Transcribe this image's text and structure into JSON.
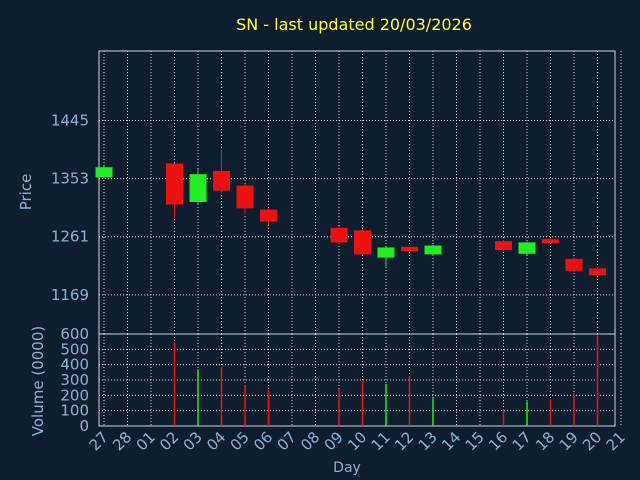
{
  "colors": {
    "background": "#0f1e2e",
    "title": "#ffff33",
    "axis_text": "#8fb0d0",
    "grid": "#d0d8e0",
    "up": "#22ee22",
    "down": "#ee1111"
  },
  "chart_data": [
    {
      "type": "candlestick",
      "title": "SN - last updated 20/03/2026",
      "ylabel": "Price",
      "xlabel": "Day",
      "ylim": [
        1107,
        1555
      ],
      "yticks": [
        1169,
        1261,
        1353,
        1445
      ],
      "grid": true,
      "x_ticks": [
        "27",
        "28",
        "01",
        "02",
        "03",
        "04",
        "05",
        "06",
        "07",
        "08",
        "09",
        "10",
        "11",
        "12",
        "13",
        "14",
        "15",
        "16",
        "17",
        "18",
        "19",
        "20",
        "21"
      ],
      "candles": [
        {
          "x": "27",
          "open": 1355,
          "close": 1371,
          "high": 1375,
          "low": 1353
        },
        {
          "x": "02",
          "open": 1377,
          "close": 1312,
          "high": 1378,
          "low": 1290
        },
        {
          "x": "03",
          "open": 1316,
          "close": 1360,
          "high": 1368,
          "low": 1312
        },
        {
          "x": "04",
          "open": 1365,
          "close": 1334,
          "high": 1398,
          "low": 1330
        },
        {
          "x": "05",
          "open": 1342,
          "close": 1306,
          "high": 1344,
          "low": 1297
        },
        {
          "x": "06",
          "open": 1304,
          "close": 1285,
          "high": 1306,
          "low": 1279
        },
        {
          "x": "09",
          "open": 1275,
          "close": 1252,
          "high": 1278,
          "low": 1248
        },
        {
          "x": "10",
          "open": 1271,
          "close": 1233,
          "high": 1273,
          "low": 1232
        },
        {
          "x": "11",
          "open": 1228,
          "close": 1244,
          "high": 1245,
          "low": 1211
        },
        {
          "x": "12",
          "open": 1245,
          "close": 1238,
          "high": 1247,
          "low": 1237
        },
        {
          "x": "13",
          "open": 1233,
          "close": 1247,
          "high": 1248,
          "low": 1231
        },
        {
          "x": "16",
          "open": 1254,
          "close": 1240,
          "high": 1256,
          "low": 1238
        },
        {
          "x": "17",
          "open": 1234,
          "close": 1252,
          "high": 1253,
          "low": 1232
        },
        {
          "x": "18",
          "open": 1257,
          "close": 1251,
          "high": 1259,
          "low": 1249
        },
        {
          "x": "19",
          "open": 1226,
          "close": 1207,
          "high": 1228,
          "low": 1205
        },
        {
          "x": "20",
          "open": 1211,
          "close": 1200,
          "high": 1213,
          "low": 1199
        }
      ]
    },
    {
      "type": "bar",
      "ylabel": "Volume (0000)",
      "ylim": [
        0,
        600
      ],
      "yticks": [
        0,
        100,
        200,
        300,
        400,
        500,
        600
      ],
      "grid": true,
      "bars": [
        {
          "x": "02",
          "value": 540,
          "dir": "down"
        },
        {
          "x": "03",
          "value": 370,
          "dir": "up"
        },
        {
          "x": "04",
          "value": 385,
          "dir": "down"
        },
        {
          "x": "05",
          "value": 265,
          "dir": "down"
        },
        {
          "x": "06",
          "value": 235,
          "dir": "down"
        },
        {
          "x": "09",
          "value": 240,
          "dir": "down"
        },
        {
          "x": "10",
          "value": 300,
          "dir": "down"
        },
        {
          "x": "11",
          "value": 275,
          "dir": "up"
        },
        {
          "x": "12",
          "value": 325,
          "dir": "down"
        },
        {
          "x": "13",
          "value": 180,
          "dir": "up"
        },
        {
          "x": "16",
          "value": 110,
          "dir": "down"
        },
        {
          "x": "17",
          "value": 160,
          "dir": "up"
        },
        {
          "x": "18",
          "value": 175,
          "dir": "down"
        },
        {
          "x": "19",
          "value": 215,
          "dir": "down"
        },
        {
          "x": "20",
          "value": 590,
          "dir": "down"
        }
      ]
    }
  ]
}
